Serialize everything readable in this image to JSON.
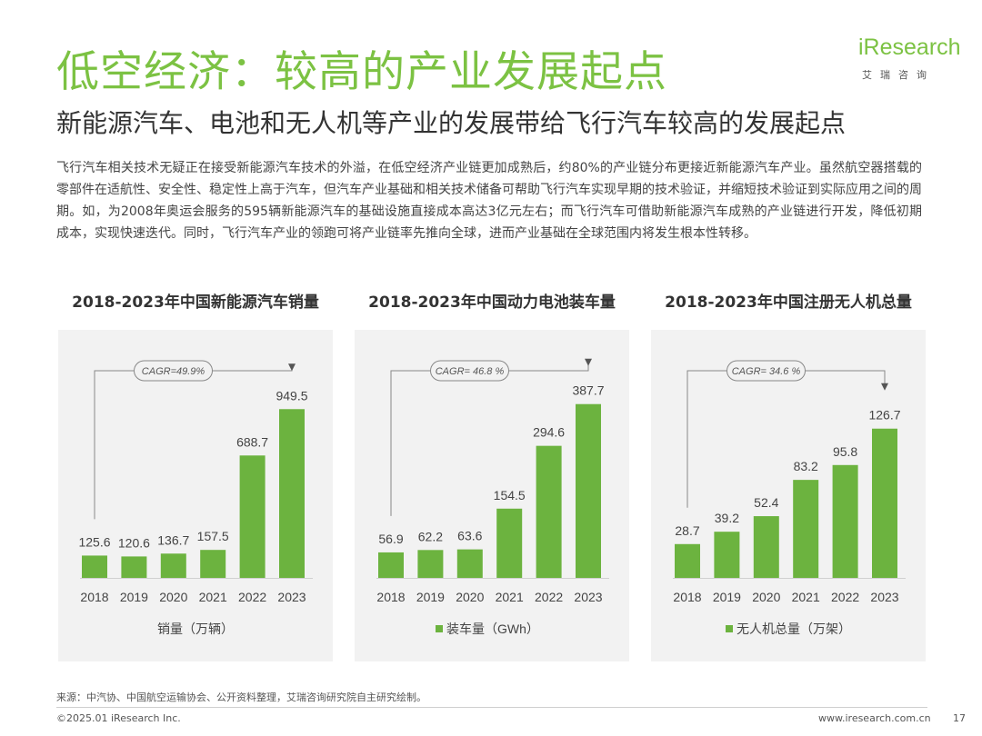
{
  "header": {
    "title": "低空经济：较高的产业发展起点",
    "subtitle": "新能源汽车、电池和无人机等产业的发展带给飞行汽车较高的发展起点"
  },
  "logo": {
    "word": "iResearch",
    "sub": "艾瑞咨询"
  },
  "body_text": "飞行汽车相关技术无疑正在接受新能源汽车技术的外溢，在低空经济产业链更加成熟后，约80%的产业链分布更接近新能源汽车产业。虽然航空器搭载的零部件在适航性、安全性、稳定性上高于汽车，但汽车产业基础和相关技术储备可帮助飞行汽车实现早期的技术验证，并缩短技术验证到实际应用之间的周期。如，为2008年奥运会服务的595辆新能源汽车的基础设施直接成本高达3亿元左右；而飞行汽车可借助新能源汽车成熟的产业链进行开发，降低初期成本，实现快速迭代。同时，飞行汽车产业的领跑可将产业链率先推向全球，进而产业基础在全球范围内将发生根本性转移。",
  "colors": {
    "accent": "#7cc243",
    "bar": "#6cb33f",
    "panel": "#f2f2f2"
  },
  "chart_data": [
    {
      "type": "bar",
      "title": "2018-2023年中国新能源汽车销量",
      "categories": [
        "2018",
        "2019",
        "2020",
        "2021",
        "2022",
        "2023"
      ],
      "values": [
        125.6,
        120.6,
        136.7,
        157.5,
        688.7,
        949.5
      ],
      "value_labels": [
        "125.6",
        "120.6",
        "136.7",
        "157.5",
        "688.7",
        "949.5"
      ],
      "cagr": "CAGR=49.9%",
      "legend": "销量（万辆）",
      "legend_marker": false,
      "ylim": [
        0,
        1140
      ]
    },
    {
      "type": "bar",
      "title": "2018-2023年中国动力电池装车量",
      "categories": [
        "2018",
        "2019",
        "2020",
        "2021",
        "2022",
        "2023"
      ],
      "values": [
        56.9,
        62.2,
        63.6,
        154.5,
        294.6,
        387.7
      ],
      "value_labels": [
        "56.9",
        "62.2",
        "63.6",
        "154.5",
        "294.6",
        "387.7"
      ],
      "cagr": "CAGR= 46.8 %",
      "legend": "装车量（GWh）",
      "legend_marker": true,
      "ylim": [
        0,
        452
      ]
    },
    {
      "type": "bar",
      "title": "2018-2023年中国注册无人机总量",
      "categories": [
        "2018",
        "2019",
        "2020",
        "2021",
        "2022",
        "2023"
      ],
      "values": [
        28.7,
        39.2,
        52.4,
        83.2,
        95.8,
        126.7
      ],
      "value_labels": [
        "28.7",
        "39.2",
        "52.4",
        "83.2",
        "95.8",
        "126.7"
      ],
      "cagr": "CAGR= 34.6 %",
      "legend": "无人机总量（万架）",
      "legend_marker": true,
      "ylim": [
        0,
        172
      ]
    }
  ],
  "footer": {
    "source": "来源：中汽协、中国航空运输协会、公开资料整理，艾瑞咨询研究院自主研究绘制。",
    "copyright": "©2025.01 iResearch Inc.",
    "website": "www.iresearch.com.cn",
    "page": "17"
  }
}
